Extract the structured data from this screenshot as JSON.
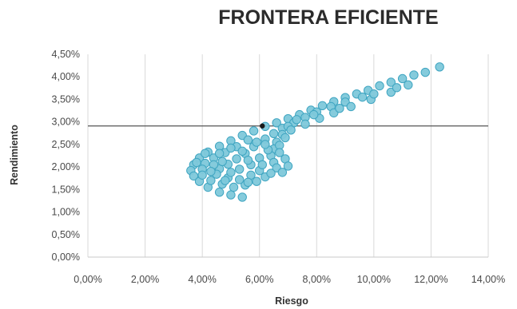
{
  "chart_data": {
    "type": "scatter",
    "title": "FRONTERA EFICIENTE",
    "xlabel": "Riesgo",
    "ylabel": "Rendimiento",
    "xlim": [
      0,
      14
    ],
    "ylim": [
      0,
      4.5
    ],
    "x_ticks": [
      "0,00%",
      "2,00%",
      "4,00%",
      "6,00%",
      "8,00%",
      "10,00%",
      "12,00%",
      "14,00%"
    ],
    "y_ticks": [
      "0,00%",
      "0,50%",
      "1,00%",
      "1,50%",
      "2,00%",
      "2,50%",
      "3,00%",
      "3,50%",
      "4,00%",
      "4,50%"
    ],
    "grid": "vertical",
    "colors": {
      "points": "#7ec8da",
      "point_edge": "#3fa5c1",
      "highlight": "#1a1a1a",
      "hline": "#555555",
      "grid": "#d9d9d9"
    },
    "series": [
      {
        "values": [
          {
            "x": 12.3,
            "y": 4.22
          },
          {
            "x": 11.8,
            "y": 4.1
          },
          {
            "x": 11.4,
            "y": 4.04
          },
          {
            "x": 11.0,
            "y": 3.96
          },
          {
            "x": 10.6,
            "y": 3.88
          },
          {
            "x": 10.2,
            "y": 3.8
          },
          {
            "x": 9.8,
            "y": 3.7
          },
          {
            "x": 9.4,
            "y": 3.62
          },
          {
            "x": 9.0,
            "y": 3.54
          },
          {
            "x": 8.6,
            "y": 3.45
          },
          {
            "x": 8.2,
            "y": 3.36
          },
          {
            "x": 7.8,
            "y": 3.26
          },
          {
            "x": 7.4,
            "y": 3.16
          },
          {
            "x": 7.0,
            "y": 3.07
          },
          {
            "x": 6.6,
            "y": 2.98
          },
          {
            "x": 6.2,
            "y": 2.9
          },
          {
            "x": 5.8,
            "y": 2.8
          },
          {
            "x": 5.4,
            "y": 2.7
          },
          {
            "x": 5.0,
            "y": 2.58
          },
          {
            "x": 4.6,
            "y": 2.46
          },
          {
            "x": 4.2,
            "y": 2.33
          },
          {
            "x": 3.9,
            "y": 2.2
          },
          {
            "x": 3.7,
            "y": 2.05
          },
          {
            "x": 3.6,
            "y": 1.92
          },
          {
            "x": 3.7,
            "y": 1.8
          },
          {
            "x": 3.9,
            "y": 1.68
          },
          {
            "x": 4.2,
            "y": 1.55
          },
          {
            "x": 4.6,
            "y": 1.44
          },
          {
            "x": 5.0,
            "y": 1.38
          },
          {
            "x": 5.4,
            "y": 1.33
          },
          {
            "x": 9.6,
            "y": 3.55
          },
          {
            "x": 9.0,
            "y": 3.44
          },
          {
            "x": 8.5,
            "y": 3.34
          },
          {
            "x": 8.0,
            "y": 3.22
          },
          {
            "x": 7.6,
            "y": 3.1
          },
          {
            "x": 7.2,
            "y": 2.98
          },
          {
            "x": 6.8,
            "y": 2.86
          },
          {
            "x": 6.5,
            "y": 2.74
          },
          {
            "x": 6.2,
            "y": 2.62
          },
          {
            "x": 7.3,
            "y": 3.05
          },
          {
            "x": 7.0,
            "y": 2.9
          },
          {
            "x": 6.8,
            "y": 2.72
          },
          {
            "x": 6.6,
            "y": 2.55
          },
          {
            "x": 6.5,
            "y": 2.4
          },
          {
            "x": 6.4,
            "y": 2.25
          },
          {
            "x": 6.5,
            "y": 2.1
          },
          {
            "x": 6.6,
            "y": 1.98
          },
          {
            "x": 6.8,
            "y": 1.88
          },
          {
            "x": 5.6,
            "y": 2.6
          },
          {
            "x": 5.2,
            "y": 2.45
          },
          {
            "x": 4.8,
            "y": 2.32
          },
          {
            "x": 4.4,
            "y": 2.2
          },
          {
            "x": 4.1,
            "y": 2.08
          },
          {
            "x": 4.0,
            "y": 1.95
          },
          {
            "x": 4.0,
            "y": 1.82
          },
          {
            "x": 4.3,
            "y": 1.7
          },
          {
            "x": 4.7,
            "y": 1.62
          },
          {
            "x": 5.1,
            "y": 1.55
          },
          {
            "x": 5.5,
            "y": 1.6
          },
          {
            "x": 5.9,
            "y": 1.68
          },
          {
            "x": 6.2,
            "y": 1.78
          },
          {
            "x": 5.8,
            "y": 2.45
          },
          {
            "x": 5.5,
            "y": 2.3
          },
          {
            "x": 5.2,
            "y": 2.18
          },
          {
            "x": 4.9,
            "y": 2.06
          },
          {
            "x": 4.6,
            "y": 1.96
          },
          {
            "x": 4.5,
            "y": 1.84
          },
          {
            "x": 4.9,
            "y": 1.76
          },
          {
            "x": 5.3,
            "y": 1.72
          },
          {
            "x": 5.7,
            "y": 1.82
          },
          {
            "x": 6.0,
            "y": 1.92
          },
          {
            "x": 6.0,
            "y": 2.2
          },
          {
            "x": 5.7,
            "y": 2.05
          },
          {
            "x": 5.3,
            "y": 1.95
          },
          {
            "x": 5.0,
            "y": 1.88
          },
          {
            "x": 6.1,
            "y": 2.05
          },
          {
            "x": 6.3,
            "y": 2.38
          },
          {
            "x": 6.2,
            "y": 2.5
          },
          {
            "x": 5.9,
            "y": 2.55
          },
          {
            "x": 5.6,
            "y": 2.15
          },
          {
            "x": 4.4,
            "y": 2.05
          },
          {
            "x": 4.7,
            "y": 2.12
          },
          {
            "x": 5.4,
            "y": 2.35
          },
          {
            "x": 5.0,
            "y": 2.42
          },
          {
            "x": 4.6,
            "y": 2.3
          },
          {
            "x": 4.3,
            "y": 1.9
          },
          {
            "x": 4.8,
            "y": 1.7
          },
          {
            "x": 5.6,
            "y": 1.66
          },
          {
            "x": 6.4,
            "y": 1.86
          },
          {
            "x": 7.6,
            "y": 2.95
          },
          {
            "x": 8.1,
            "y": 3.08
          },
          {
            "x": 8.6,
            "y": 3.2
          },
          {
            "x": 9.2,
            "y": 3.34
          },
          {
            "x": 9.9,
            "y": 3.5
          },
          {
            "x": 10.6,
            "y": 3.66
          },
          {
            "x": 11.2,
            "y": 3.82
          },
          {
            "x": 10.0,
            "y": 3.62
          },
          {
            "x": 10.8,
            "y": 3.76
          },
          {
            "x": 8.8,
            "y": 3.3
          },
          {
            "x": 7.9,
            "y": 3.16
          },
          {
            "x": 7.1,
            "y": 2.82
          },
          {
            "x": 6.9,
            "y": 2.65
          },
          {
            "x": 6.7,
            "y": 2.48
          },
          {
            "x": 6.7,
            "y": 2.32
          },
          {
            "x": 6.9,
            "y": 2.18
          },
          {
            "x": 7.0,
            "y": 2.02
          },
          {
            "x": 4.1,
            "y": 2.3
          },
          {
            "x": 3.8,
            "y": 2.1
          }
        ]
      }
    ],
    "highlight_point": {
      "x": 6.1,
      "y": 2.91
    },
    "reference_line_y": 2.91
  }
}
